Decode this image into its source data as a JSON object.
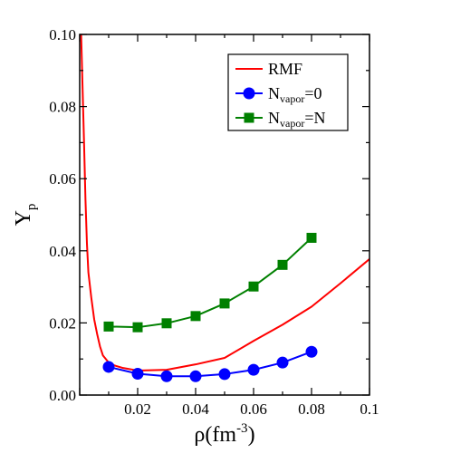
{
  "chart_data": {
    "type": "line",
    "xlabel": "ρ(fm",
    "xlabel_sup": "-3",
    "xlabel_close": ")",
    "ylabel": "Y",
    "ylabel_sub": "p",
    "xlim": [
      0,
      0.1
    ],
    "ylim": [
      0,
      0.1
    ],
    "xticks": [
      "0.02",
      "0.04",
      "0.06",
      "0.08",
      "0.1"
    ],
    "yticks": [
      "0.00",
      "0.02",
      "0.04",
      "0.06",
      "0.08",
      "0.10"
    ],
    "grid": false,
    "legend_position": "top-right",
    "series": [
      {
        "name": "RMF",
        "color": "#ff0000",
        "marker": "none",
        "x": [
          0.0005,
          0.001,
          0.0015,
          0.002,
          0.0025,
          0.003,
          0.004,
          0.005,
          0.006,
          0.007,
          0.008,
          0.01,
          0.012,
          0.015,
          0.02,
          0.03,
          0.04,
          0.05,
          0.06,
          0.07,
          0.08,
          0.09,
          0.1
        ],
        "y": [
          0.1,
          0.085,
          0.07,
          0.054,
          0.042,
          0.034,
          0.027,
          0.021,
          0.017,
          0.0135,
          0.011,
          0.009,
          0.0082,
          0.0075,
          0.0068,
          0.007,
          0.0085,
          0.0103,
          0.015,
          0.0195,
          0.0245,
          0.031,
          0.0377
        ]
      },
      {
        "name": "N",
        "name_sub": "vapor",
        "name_tail": "=0",
        "color": "#0000ff",
        "marker": "circle",
        "x": [
          0.01,
          0.02,
          0.03,
          0.04,
          0.05,
          0.06,
          0.07,
          0.08
        ],
        "y": [
          0.0078,
          0.0059,
          0.0052,
          0.0052,
          0.0058,
          0.007,
          0.009,
          0.012
        ]
      },
      {
        "name": "N",
        "name_sub": "vapor",
        "name_tail": "=N",
        "color": "#008000",
        "marker": "square",
        "x": [
          0.01,
          0.02,
          0.03,
          0.04,
          0.05,
          0.06,
          0.07,
          0.08
        ],
        "y": [
          0.019,
          0.0188,
          0.0199,
          0.0219,
          0.0254,
          0.0301,
          0.0361,
          0.0436
        ]
      }
    ]
  }
}
